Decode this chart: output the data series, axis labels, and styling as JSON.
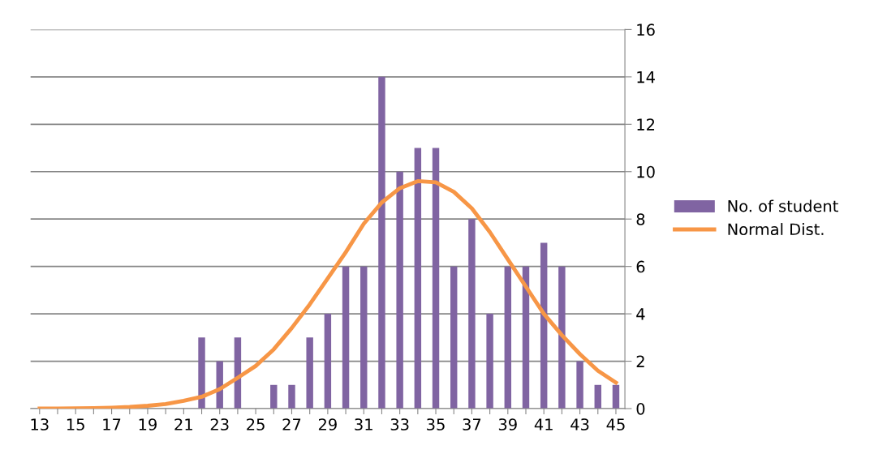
{
  "chart_data": {
    "type": "bar",
    "categories": [
      "13",
      null,
      "15",
      null,
      "17",
      null,
      "19",
      null,
      "21",
      null,
      "23",
      null,
      "25",
      null,
      "27",
      null,
      "29",
      null,
      "31",
      null,
      "33",
      null,
      "35",
      null,
      "37",
      null,
      "39",
      null,
      "41",
      null,
      "43",
      null,
      "45"
    ],
    "series": [
      {
        "name": "No. of student",
        "color": "#8064a2",
        "values": [
          0,
          0,
          0,
          0,
          0,
          0,
          0,
          0,
          0,
          3,
          2,
          3,
          0,
          1,
          1,
          3,
          4,
          6,
          6,
          14,
          10,
          11,
          11,
          6,
          8,
          4,
          6,
          6,
          7,
          6,
          2,
          1,
          1
        ]
      },
      {
        "name": "Normal Dist.",
        "type": "line",
        "color": "#f79646",
        "values": [
          0,
          0,
          0.01,
          0.02,
          0.04,
          0.07,
          0.12,
          0.19,
          0.33,
          0.5,
          0.82,
          1.3,
          1.8,
          2.5,
          3.4,
          4.4,
          5.5,
          6.6,
          7.8,
          8.7,
          9.3,
          9.6,
          9.55,
          9.15,
          8.45,
          7.45,
          6.3,
          5.15,
          4.0,
          3.1,
          2.3,
          1.6,
          1.1
        ]
      }
    ],
    "ylim": [
      0,
      16
    ],
    "yticks": [
      0,
      2,
      4,
      6,
      8,
      10,
      12,
      14,
      16
    ],
    "grid": "y",
    "legend": "right",
    "marker": "none",
    "line_style": "solid"
  }
}
